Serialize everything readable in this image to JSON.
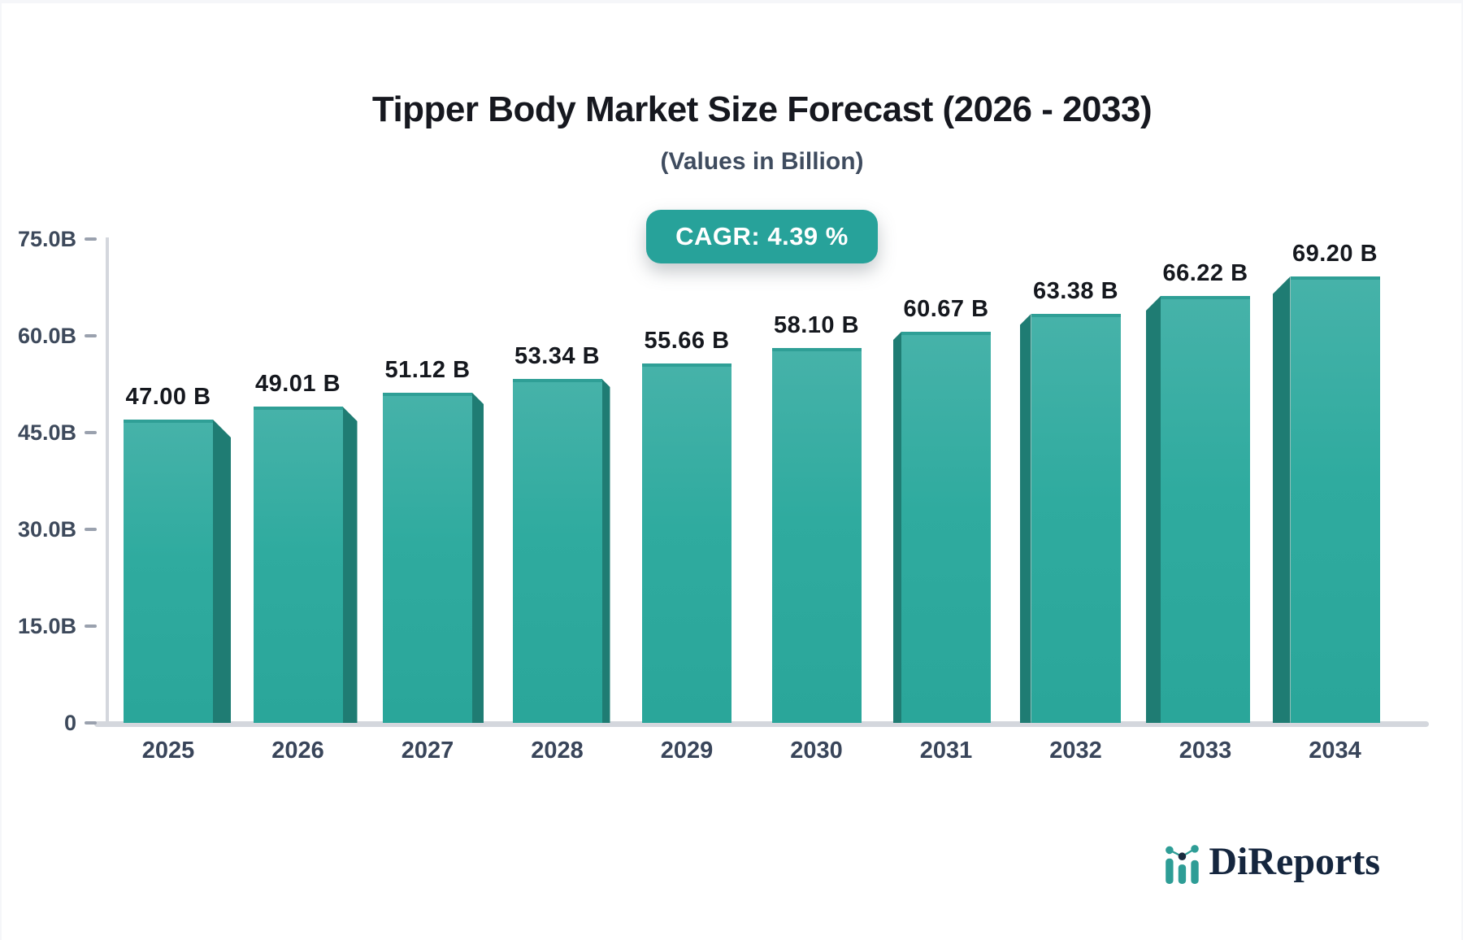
{
  "header": {
    "title": "Tipper Body Market Size Forecast (2026 - 2033)",
    "subtitle": "(Values in Billion)",
    "cagr_label": "CAGR: 4.39 %"
  },
  "footer": {
    "brand": "DiReports",
    "brand_icon": "bar-line-chart-icon"
  },
  "colors": {
    "bar_face_top": "#46b2a9",
    "bar_face_bottom": "#2aa69a",
    "bar_top_cap": "#2f9f96",
    "bar_side_3d": "#1f7c73",
    "badge_background": "#27a29a",
    "badge_text": "#ffffff",
    "axis_text": "#3d495b",
    "value_label_text": "#15181e",
    "axis_line": "#d4d7dd",
    "tick_dash": "#9aa1ae",
    "brand_navy": "#15263e",
    "brand_teal": "#2e9d96"
  },
  "chart_data": {
    "type": "bar",
    "title": "Tipper Body Market Size Forecast (2026 - 2033)",
    "subtitle": "(Values in Billion)",
    "annotation": "CAGR: 4.39 %",
    "categories": [
      "2025",
      "2026",
      "2027",
      "2028",
      "2029",
      "2030",
      "2031",
      "2032",
      "2033",
      "2034"
    ],
    "values": [
      47.0,
      49.01,
      51.12,
      53.34,
      55.66,
      58.1,
      60.67,
      63.38,
      66.22,
      69.2
    ],
    "bar_labels": [
      "47.00 B",
      "49.01 B",
      "51.12 B",
      "53.34 B",
      "55.66 B",
      "58.10 B",
      "60.67 B",
      "63.38 B",
      "66.22 B",
      "69.20 B"
    ],
    "unit": "Billion",
    "xlabel": "",
    "ylabel": "",
    "ylim": [
      0,
      75
    ],
    "ytick_values": [
      75,
      60,
      45,
      30,
      15,
      0
    ],
    "ytick_labels": [
      "75.0B",
      "60.0B",
      "45.0B",
      "30.0B",
      "15.0B",
      "0"
    ],
    "grid": false,
    "legend": false,
    "style": "3d-perspective-bars, teal gradient, white background"
  }
}
